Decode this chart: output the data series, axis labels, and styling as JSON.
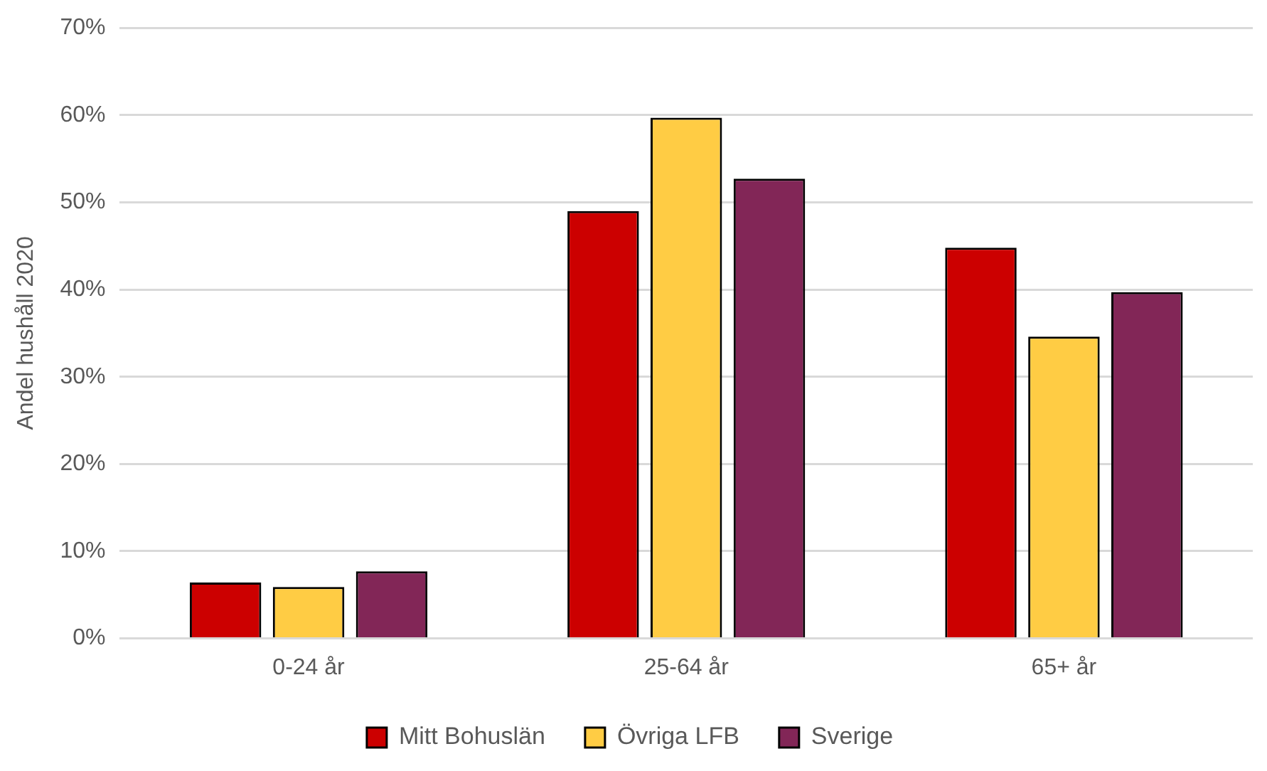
{
  "chart_data": {
    "type": "bar",
    "ylabel": "Andel hushåll 2020",
    "categories": [
      "0-24 år",
      "25-64 år",
      "65+ år"
    ],
    "series": [
      {
        "name": "Mitt Bohuslän",
        "color": "#cc0000",
        "values": [
          6.4,
          49.0,
          44.8
        ]
      },
      {
        "name": "Övriga LFB",
        "color": "#ffcc44",
        "values": [
          5.9,
          59.7,
          34.6
        ]
      },
      {
        "name": "Sverige",
        "color": "#822657",
        "values": [
          7.7,
          52.7,
          39.7
        ]
      }
    ],
    "ylim": [
      0,
      70
    ],
    "yticks": [
      {
        "value": 0,
        "label": "0%"
      },
      {
        "value": 10,
        "label": "10%"
      },
      {
        "value": 20,
        "label": "20%"
      },
      {
        "value": 30,
        "label": "30%"
      },
      {
        "value": 40,
        "label": "40%"
      },
      {
        "value": 50,
        "label": "50%"
      },
      {
        "value": 60,
        "label": "60%"
      },
      {
        "value": 70,
        "label": "70%"
      }
    ],
    "grid": "y",
    "legend": "bottom"
  }
}
